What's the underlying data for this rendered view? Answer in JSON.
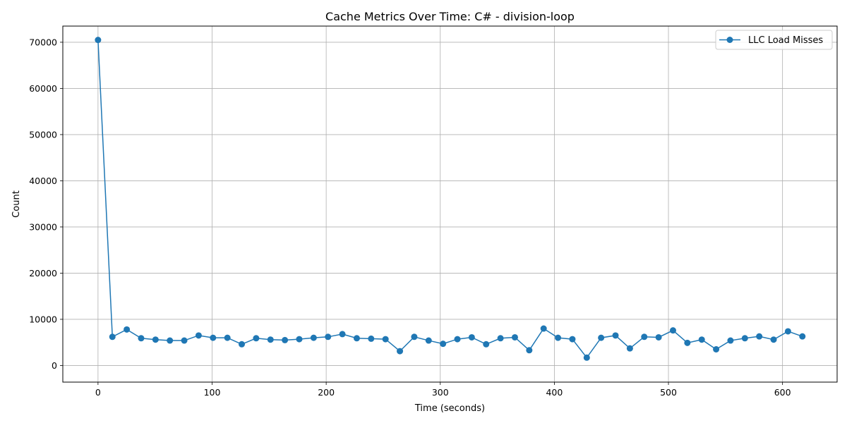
{
  "chart_data": {
    "type": "line",
    "title": "Cache Metrics Over Time: C# - division-loop",
    "xlabel": "Time (seconds)",
    "ylabel": "Count",
    "xlim": [
      -30.85,
      647.85
    ],
    "ylim": [
      -3600,
      73500
    ],
    "xticks": [
      0,
      100,
      200,
      300,
      400,
      500,
      600
    ],
    "yticks": [
      0,
      10000,
      20000,
      30000,
      40000,
      50000,
      60000,
      70000
    ],
    "grid": true,
    "legend_position": "top-right",
    "series": [
      {
        "name": "LLC Load Misses",
        "color": "#1f77b4",
        "marker": "circle",
        "x": [
          0,
          12.6,
          25.2,
          37.8,
          50.4,
          63,
          75.6,
          88.2,
          100.8,
          113.4,
          126,
          138.6,
          151.2,
          163.8,
          176.4,
          189,
          201.6,
          214.2,
          226.8,
          239.4,
          252,
          264.6,
          277.2,
          289.8,
          302.4,
          315,
          327.6,
          340.2,
          352.8,
          365.4,
          378,
          390.6,
          403.2,
          415.8,
          428.4,
          441,
          453.6,
          466.2,
          478.8,
          491.4,
          504,
          516.6,
          529.2,
          541.8,
          554.4,
          567,
          579.6,
          592.2,
          604.8,
          617.4
        ],
        "y": [
          70500,
          6200,
          7800,
          5900,
          5600,
          5400,
          5400,
          6500,
          6000,
          6000,
          4600,
          5900,
          5600,
          5500,
          5700,
          6000,
          6200,
          6800,
          5900,
          5800,
          5700,
          3100,
          6200,
          5400,
          4700,
          5700,
          6100,
          4600,
          5900,
          6100,
          3300,
          8000,
          6000,
          5700,
          1700,
          6000,
          6500,
          3700,
          6200,
          6100,
          7600,
          4900,
          5600,
          3500,
          5400,
          5900,
          6300,
          5600,
          7400,
          6300
        ]
      }
    ]
  }
}
